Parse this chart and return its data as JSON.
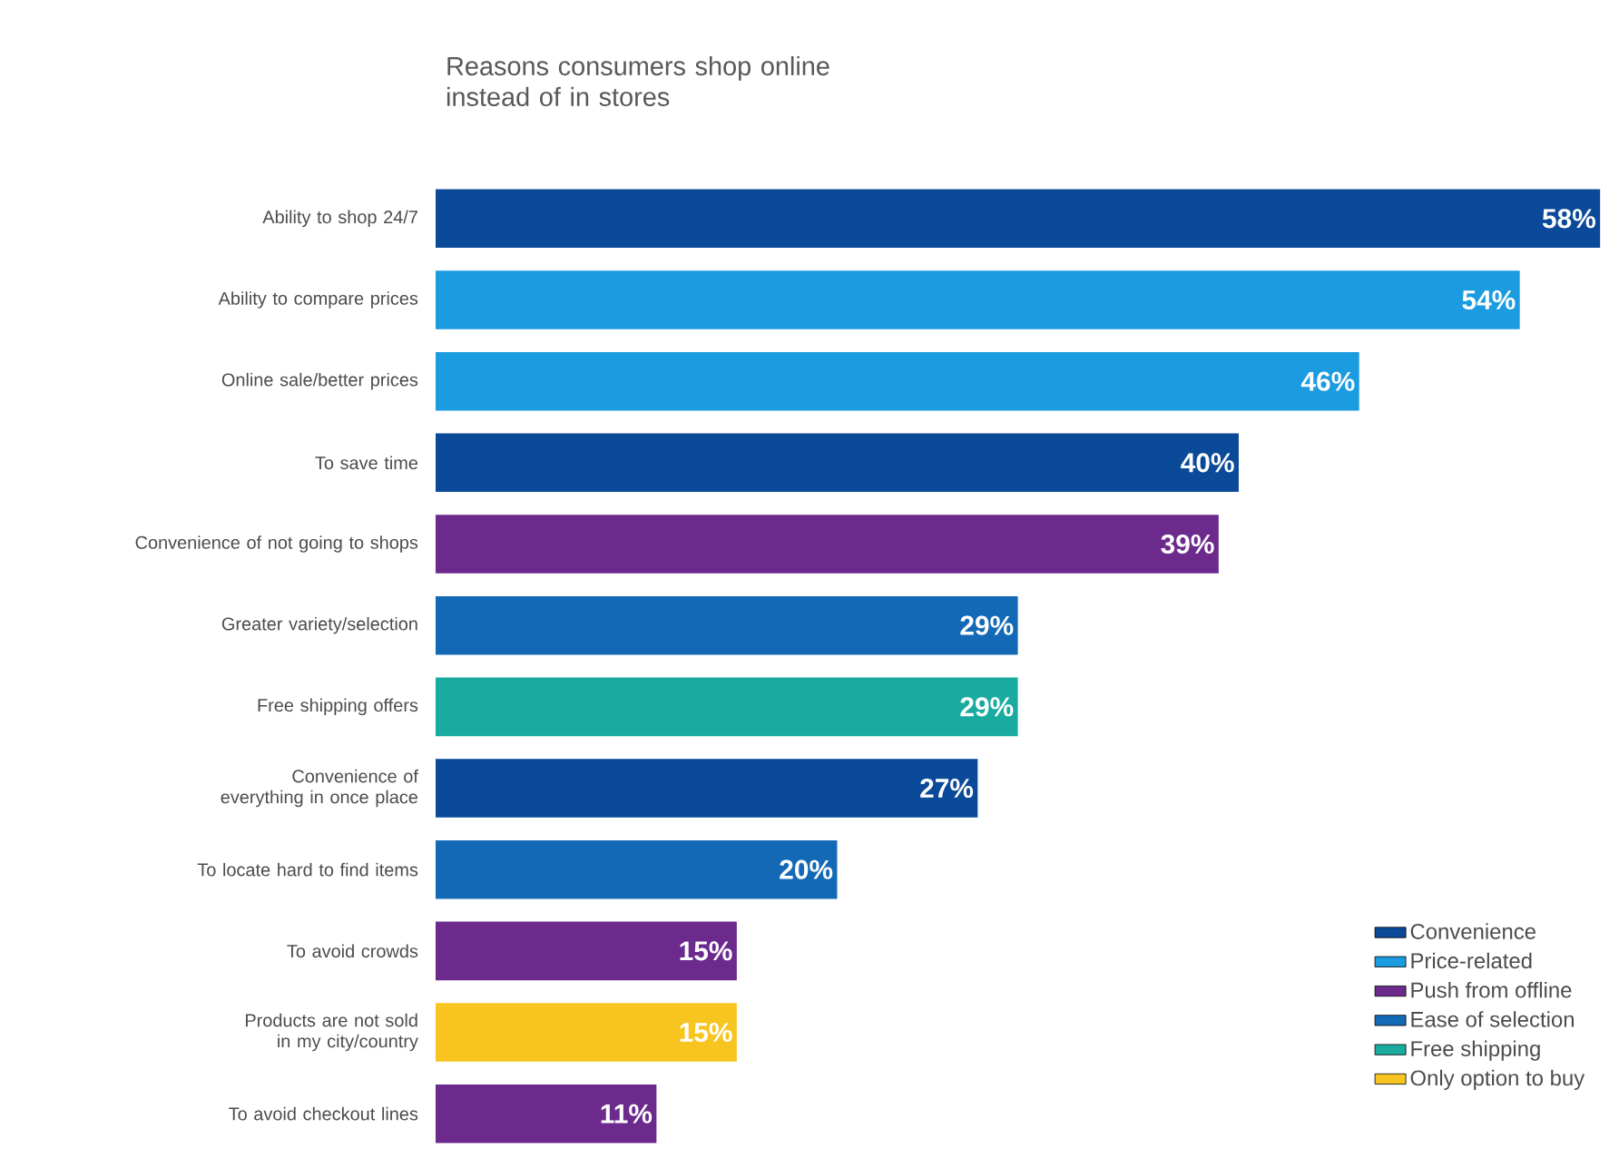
{
  "chart_data": {
    "type": "bar",
    "orientation": "horizontal",
    "title": "Reasons consumers shop online instead of in stores",
    "categories": [
      "Ability to shop 24/7",
      "Ability to compare prices",
      "Online sale/better prices",
      "To save time",
      "Convenience of not going to shops",
      "Greater variety/selection",
      "Free shipping offers",
      "Convenience of everything in once place",
      "To locate hard to find items",
      "To avoid crowds",
      "Products are not sold in my city/country",
      "To avoid checkout lines"
    ],
    "series": [
      {
        "name": "Convenience",
        "color": "#0b4a98",
        "values": [
          58,
          null,
          null,
          40,
          null,
          null,
          null,
          27,
          null,
          null,
          null,
          null
        ],
        "value_labels": [
          "58%",
          null,
          null,
          "40%",
          null,
          null,
          null,
          "27%",
          null,
          null,
          null,
          null
        ]
      },
      {
        "name": "Price-related",
        "color": "#1b9be0",
        "values": [
          null,
          54,
          46,
          null,
          null,
          null,
          null,
          null,
          null,
          null,
          null,
          null
        ],
        "value_labels": [
          null,
          "54%",
          "46%",
          null,
          null,
          null,
          null,
          null,
          null,
          null,
          null,
          null
        ]
      },
      {
        "name": "Push from offline",
        "color": "#6b2a8c",
        "values": [
          null,
          null,
          null,
          null,
          39,
          null,
          null,
          null,
          null,
          15,
          null,
          11
        ],
        "value_labels": [
          null,
          null,
          null,
          null,
          "39%",
          null,
          null,
          null,
          null,
          "15%",
          null,
          "11%"
        ]
      },
      {
        "name": "Ease of selection",
        "color": "#1469b6",
        "values": [
          null,
          null,
          null,
          null,
          null,
          29,
          null,
          null,
          20,
          null,
          null,
          null
        ],
        "value_labels": [
          null,
          null,
          null,
          null,
          null,
          "29%",
          null,
          null,
          "20%",
          null,
          null,
          null
        ]
      },
      {
        "name": "Free shipping",
        "color": "#1aaba0",
        "values": [
          null,
          null,
          null,
          null,
          null,
          null,
          29,
          null,
          null,
          null,
          null,
          null
        ],
        "value_labels": [
          null,
          null,
          null,
          null,
          null,
          null,
          "29%",
          null,
          null,
          null,
          null,
          null
        ]
      },
      {
        "name": "Only option to buy",
        "color": "#f7c420",
        "values": [
          null,
          null,
          null,
          null,
          null,
          null,
          null,
          null,
          null,
          null,
          15,
          null
        ],
        "value_labels": [
          null,
          null,
          null,
          null,
          null,
          null,
          null,
          null,
          null,
          null,
          "15%",
          null
        ]
      }
    ],
    "legend": "bottom right",
    "grid": false
  }
}
